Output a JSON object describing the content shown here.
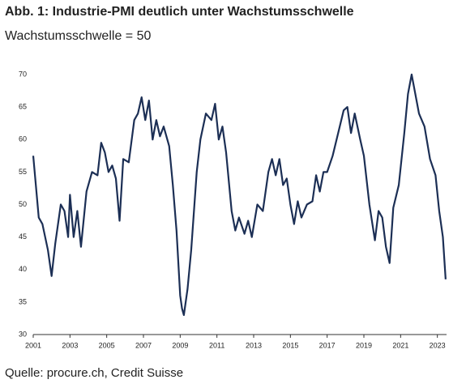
{
  "chart_data": {
    "type": "line",
    "title": "Abb. 1: Industrie-PMI deutlich unter Wachstumsschwelle",
    "subtitle": "Wachstumsschwelle = 50",
    "source": "Quelle: procure.ch, Credit Suisse",
    "x": [
      2001.0,
      2001.3,
      2001.5,
      2001.8,
      2002.0,
      2002.2,
      2002.5,
      2002.7,
      2002.9,
      2003.0,
      2003.2,
      2003.4,
      2003.6,
      2003.9,
      2004.2,
      2004.5,
      2004.7,
      2004.9,
      2005.1,
      2005.3,
      2005.5,
      2005.7,
      2005.9,
      2006.2,
      2006.5,
      2006.7,
      2006.9,
      2007.1,
      2007.3,
      2007.5,
      2007.7,
      2007.9,
      2008.1,
      2008.4,
      2008.6,
      2008.8,
      2009.0,
      2009.1,
      2009.2,
      2009.4,
      2009.6,
      2009.9,
      2010.1,
      2010.4,
      2010.7,
      2010.9,
      2011.1,
      2011.3,
      2011.5,
      2011.8,
      2012.0,
      2012.2,
      2012.5,
      2012.7,
      2012.9,
      2013.2,
      2013.5,
      2013.8,
      2014.0,
      2014.2,
      2014.4,
      2014.6,
      2014.8,
      2015.0,
      2015.2,
      2015.4,
      2015.6,
      2015.9,
      2016.2,
      2016.4,
      2016.6,
      2016.8,
      2017.0,
      2017.3,
      2017.6,
      2017.9,
      2018.1,
      2018.3,
      2018.5,
      2018.8,
      2019.0,
      2019.3,
      2019.6,
      2019.8,
      2020.0,
      2020.2,
      2020.4,
      2020.6,
      2020.9,
      2021.2,
      2021.4,
      2021.6,
      2021.8,
      2022.0,
      2022.3,
      2022.6,
      2022.9,
      2023.1,
      2023.3,
      2023.45
    ],
    "series": [
      {
        "name": "Industrie-PMI",
        "color": "#1c2f55",
        "values": [
          57.5,
          48,
          47,
          43,
          39,
          44,
          50,
          49,
          45,
          51.5,
          45,
          49,
          43.5,
          52,
          55,
          54.5,
          59.5,
          58,
          55,
          56,
          54,
          47.5,
          57,
          56.5,
          63,
          64,
          66.5,
          63,
          66,
          60,
          63,
          60.5,
          62,
          59,
          53,
          46,
          36,
          34,
          33,
          37,
          43,
          55,
          60,
          64,
          63,
          65.5,
          60,
          62,
          58,
          49,
          46,
          48,
          45.5,
          47.5,
          45,
          50,
          49,
          55,
          57,
          54.5,
          57,
          53,
          54,
          50,
          47,
          50.5,
          48,
          50,
          50.5,
          54.5,
          52,
          55,
          55,
          57.5,
          61,
          64.5,
          65,
          61,
          64,
          60,
          57.5,
          50,
          44.5,
          49,
          48,
          43.5,
          41,
          49.5,
          53,
          61,
          67,
          70,
          67,
          64,
          62,
          57,
          54.5,
          49,
          45,
          38.5
        ]
      }
    ],
    "xlim": [
      2001,
      2023.5
    ],
    "ylim": [
      30,
      70
    ],
    "xticks": [
      2001,
      2003,
      2005,
      2007,
      2009,
      2011,
      2013,
      2015,
      2017,
      2019,
      2021,
      2023
    ],
    "yticks": [
      30,
      35,
      40,
      45,
      50,
      55,
      60,
      65,
      70
    ],
    "grid": false
  }
}
